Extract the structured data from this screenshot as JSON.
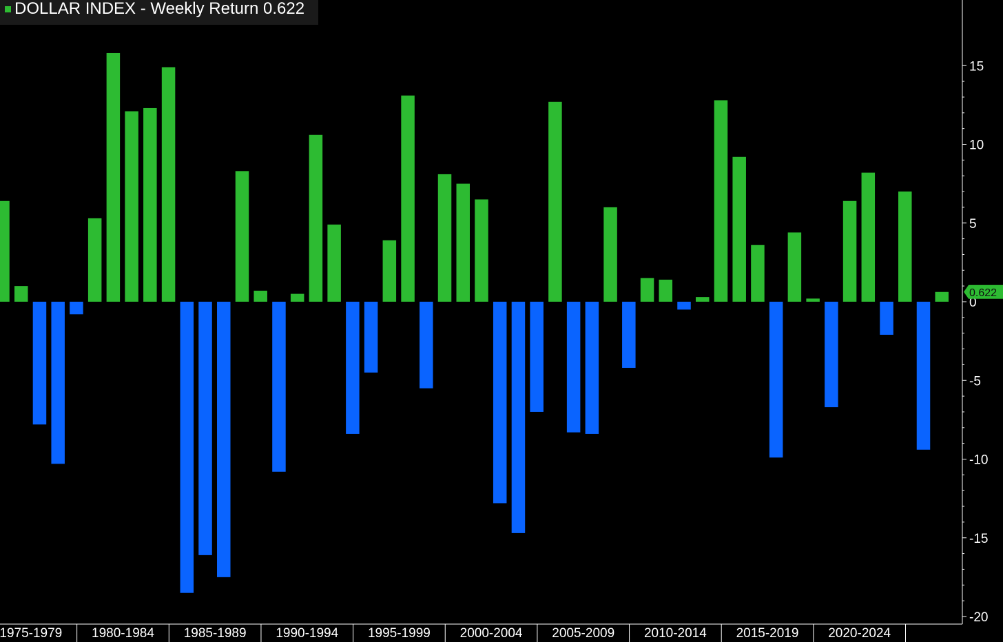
{
  "title": "DOLLAR INDEX - Weekly Return",
  "last_value_label": "0.622",
  "colors": {
    "positive": "#2dbb32",
    "negative": "#0a64ff",
    "background": "#000000",
    "axis": "#ffffff",
    "title_bg": "#1a1a1a",
    "last_value_bg": "#2dbb32"
  },
  "chart_data": {
    "type": "bar",
    "title": "DOLLAR INDEX - Weekly Return 0.622",
    "xlabel": "",
    "ylabel": "",
    "ylim": [
      -20.5,
      19
    ],
    "yticks": [
      15,
      10,
      5,
      0,
      -5,
      -10,
      -15,
      -20
    ],
    "ytick_labels": [
      "15",
      "10",
      "5",
      "0",
      "-5",
      "-10",
      "-15",
      "-20"
    ],
    "x_group_labels": [
      "1975-1979",
      "1980-1984",
      "1985-1989",
      "1990-1994",
      "1995-1999",
      "2000-2004",
      "2005-2009",
      "2010-2014",
      "2015-2019",
      "2020-2024"
    ],
    "values": [
      6.4,
      1.0,
      -7.8,
      -10.3,
      -0.8,
      5.3,
      15.8,
      12.1,
      12.3,
      14.9,
      -18.5,
      -16.1,
      -17.5,
      8.3,
      0.7,
      -10.8,
      0.5,
      10.6,
      4.9,
      -8.4,
      -4.5,
      3.9,
      13.1,
      -5.5,
      8.1,
      7.5,
      6.5,
      -12.8,
      -14.7,
      -7.0,
      12.7,
      -8.3,
      -8.4,
      6.0,
      -4.2,
      1.5,
      1.4,
      -0.5,
      0.3,
      12.8,
      9.2,
      3.6,
      -9.9,
      4.4,
      0.2,
      -6.7,
      6.4,
      8.2,
      -2.1,
      7.0,
      -9.4,
      0.622
    ],
    "last_value": 0.622
  }
}
